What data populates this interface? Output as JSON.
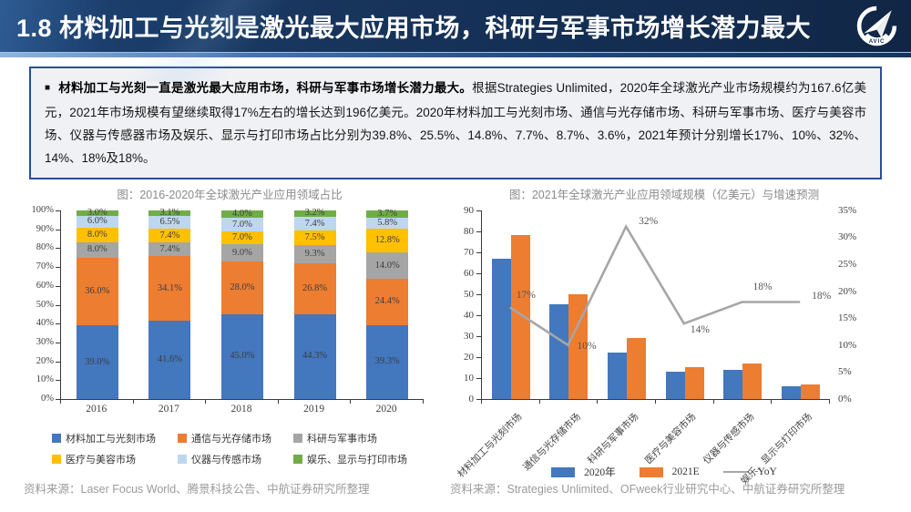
{
  "header": {
    "title": "1.8 材料加工与光刻是激光最大应用市场，科研与军事市场增长潜力最大",
    "logo_text": "AVIC"
  },
  "summary": {
    "bullet": "■",
    "bold_text": "材料加工与光刻一直是激光最大应用市场，科研与军事市场增长潜力最大。",
    "body_text": "根据Strategies Unlimited，2020年全球激光产业市场规模约为167.6亿美元，2021年市场规模有望继续取得17%左右的增长达到196亿美元。2020年材料加工与光刻市场、通信与光存储市场、科研与军事市场、医疗与美容市场、仪器与传感器市场及娱乐、显示与打印市场占比分别为39.8%、25.5%、14.8%、7.7%、8.7%、3.6%，2021年预计分别增长17%、10%、32%、14%、18%及18%。"
  },
  "chart_data": [
    {
      "type": "bar",
      "subtype": "stacked-100",
      "title": "图：2016-2020年全球激光产业应用领域占比",
      "categories": [
        "2016",
        "2017",
        "2018",
        "2019",
        "2020"
      ],
      "series": [
        {
          "name": "材料加工与光刻市场",
          "color": "#4377BE",
          "values": [
            39.0,
            41.6,
            45.0,
            44.3,
            39.3
          ]
        },
        {
          "name": "通信与光存储市场",
          "color": "#ED7D31",
          "values": [
            36.0,
            34.1,
            28.0,
            26.8,
            24.4
          ]
        },
        {
          "name": "科研与军事市场",
          "color": "#A5A5A5",
          "values": [
            8.0,
            7.4,
            9.0,
            9.3,
            14.0
          ]
        },
        {
          "name": "医疗与美容市场",
          "color": "#FFC000",
          "values": [
            8.0,
            7.4,
            7.0,
            7.5,
            12.8
          ]
        },
        {
          "name": "仪器与传感市场",
          "color": "#BDD7EE",
          "values": [
            6.0,
            6.5,
            7.0,
            7.4,
            5.8
          ]
        },
        {
          "name": "娱乐、显示与打印市场",
          "color": "#70AD47",
          "values": [
            3.0,
            3.1,
            4.0,
            3.2,
            3.7
          ]
        }
      ],
      "ylim": [
        0,
        100
      ],
      "ytick_step": 10,
      "unit": "%",
      "grid": false,
      "legend_position": "bottom",
      "source": "资料来源：Laser Focus World、腾景科技公告、中航证券研究所整理"
    },
    {
      "type": "bar",
      "subtype": "grouped-bars-with-line",
      "title": "图：2021年全球激光产业应用领域规模（亿美元）与增速预测",
      "categories": [
        "材料加工与光刻市场",
        "通信与光存储市场",
        "科研与军事市场",
        "医疗与美容市场",
        "仪器与传感市场",
        "娱乐、显示与打印市场"
      ],
      "bar_series": [
        {
          "name": "2020年",
          "color": "#4377BE",
          "values": [
            67,
            45,
            22,
            13,
            14,
            6
          ]
        },
        {
          "name": "2021E",
          "color": "#ED7D31",
          "values": [
            78,
            50,
            29,
            15,
            17,
            7
          ]
        }
      ],
      "line_series": {
        "name": "YoY",
        "color": "#A6A6A6",
        "values": [
          17,
          10,
          32,
          14,
          18,
          18
        ],
        "labels": [
          "17%",
          "10%",
          "32%",
          "14%",
          "18%",
          "18%"
        ]
      },
      "left_ylim": [
        0,
        90
      ],
      "left_ytick_step": 10,
      "right_ylim": [
        0,
        35
      ],
      "right_ytick_step": 5,
      "grid": false,
      "legend_position": "bottom",
      "source": "资料来源：Strategies Unlimited、OFweek行业研究中心、中航证券研究所整理"
    }
  ],
  "colors": {
    "titlebar_navy": "#16335C",
    "box_border_blue": "#2B4DA0",
    "box_background": "#F0F1F4",
    "axis_text": "#404040",
    "muted_text": "#8C8C8C"
  }
}
